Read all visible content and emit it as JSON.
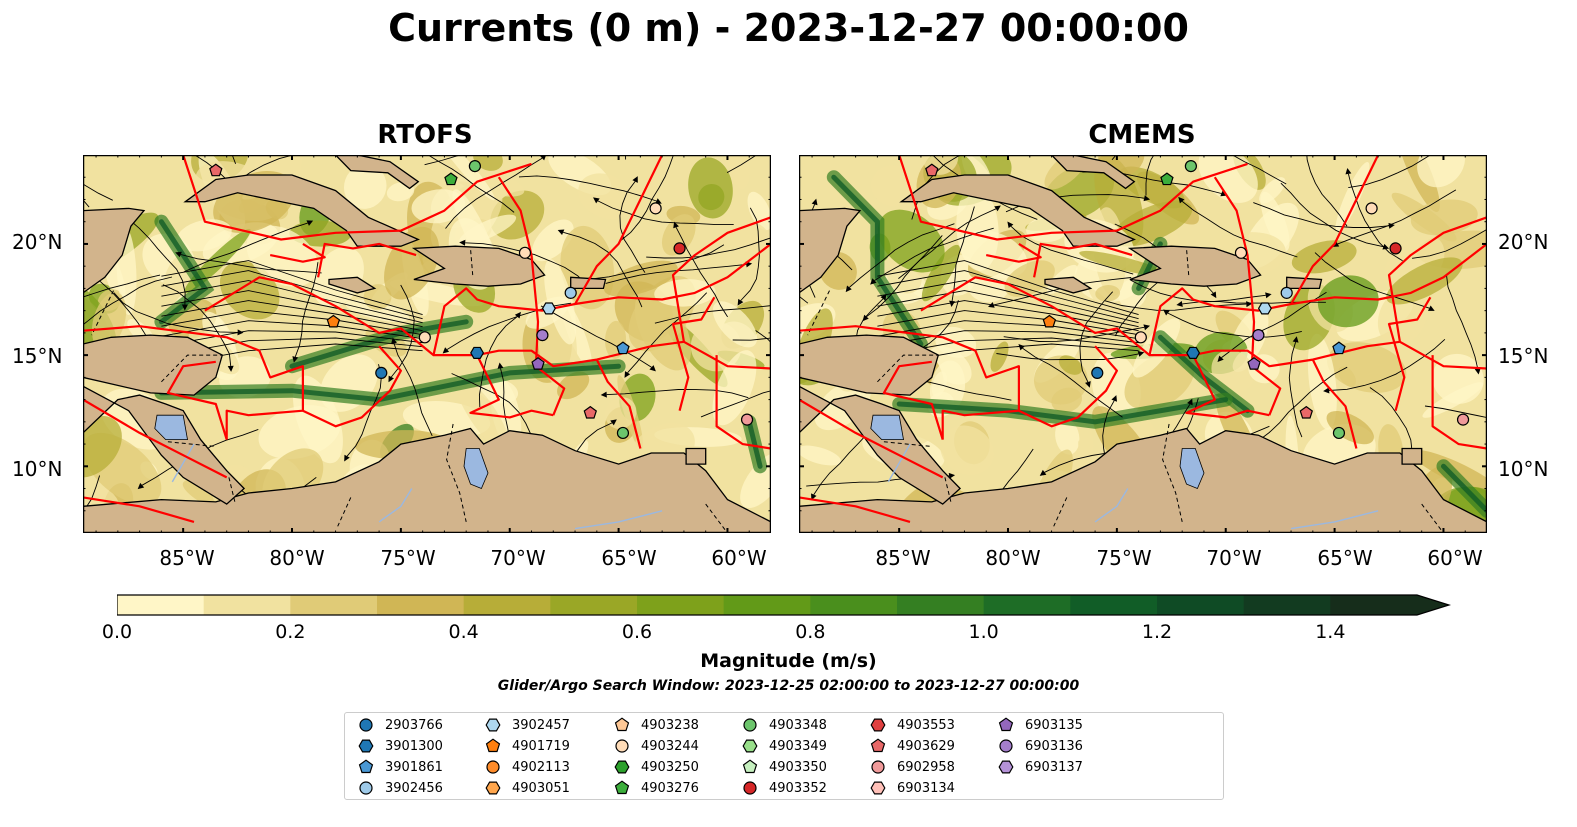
{
  "title": "Currents (0 m) - 2023-12-27 00:00:00",
  "panels": [
    {
      "title": "RTOFS"
    },
    {
      "title": "CMEMS"
    }
  ],
  "lat_labels": [
    "20°N",
    "15°N",
    "10°N"
  ],
  "lon_labels": [
    "85°W",
    "80°W",
    "75°W",
    "70°W",
    "65°W",
    "60°W"
  ],
  "map_extent": {
    "lon_min": -89.6,
    "lon_max": -58.0,
    "lat_min": 7.0,
    "lat_max": 24.0
  },
  "colorbar": {
    "label": "Magnitude (m/s)",
    "ticks": [
      "0.0",
      "0.2",
      "0.4",
      "0.6",
      "0.8",
      "1.0",
      "1.2",
      "1.4"
    ],
    "range": [
      0.0,
      1.5
    ],
    "extend": "max",
    "colors": [
      "#fff6c7",
      "#f1e2a0",
      "#e0cb77",
      "#d0b655",
      "#b7ad38",
      "#9aa726",
      "#7ea11b",
      "#629a18",
      "#4a8f1d",
      "#347f22",
      "#1e6d26",
      "#115d27",
      "#0f4b25",
      "#123b20",
      "#162d1b"
    ]
  },
  "search_window": "Glider/Argo Search Window: 2023-12-25 02:00:00 to 2023-12-27 00:00:00",
  "colors": {
    "land": "#d2b48c",
    "eez": "#ff0000",
    "lake": "#9bb8e0"
  },
  "legend": [
    {
      "id": "2903766",
      "marker": "circle",
      "color": "#1f77b4"
    },
    {
      "id": "3901300",
      "marker": "hexagon",
      "color": "#1f77b4"
    },
    {
      "id": "3901861",
      "marker": "pentagon",
      "color": "#4a98d4"
    },
    {
      "id": "3902456",
      "marker": "circle",
      "color": "#9ecae9"
    },
    {
      "id": "3902457",
      "marker": "hexagon",
      "color": "#aed8f0"
    },
    {
      "id": "4901719",
      "marker": "pentagon",
      "color": "#ff7f0e"
    },
    {
      "id": "4902113",
      "marker": "circle",
      "color": "#ff8c2a"
    },
    {
      "id": "4903051",
      "marker": "hexagon",
      "color": "#ffa64d"
    },
    {
      "id": "4903238",
      "marker": "pentagon",
      "color": "#ffc896"
    },
    {
      "id": "4903244",
      "marker": "circle",
      "color": "#ffdcb8"
    },
    {
      "id": "4903250",
      "marker": "hexagon",
      "color": "#2ca02c"
    },
    {
      "id": "4903276",
      "marker": "pentagon",
      "color": "#3cae3c"
    },
    {
      "id": "4903348",
      "marker": "circle",
      "color": "#6cc56c"
    },
    {
      "id": "4903349",
      "marker": "hexagon",
      "color": "#98df8a"
    },
    {
      "id": "4903350",
      "marker": "pentagon",
      "color": "#c6f0bf"
    },
    {
      "id": "4903352",
      "marker": "circle",
      "color": "#d62728"
    },
    {
      "id": "4903553",
      "marker": "hexagon",
      "color": "#e04040"
    },
    {
      "id": "4903629",
      "marker": "pentagon",
      "color": "#e86868"
    },
    {
      "id": "6902958",
      "marker": "circle",
      "color": "#f09a9a"
    },
    {
      "id": "6903134",
      "marker": "hexagon",
      "color": "#ffc0b8"
    },
    {
      "id": "6903135",
      "marker": "pentagon",
      "color": "#9467bd"
    },
    {
      "id": "6903136",
      "marker": "circle",
      "color": "#a47ecb"
    },
    {
      "id": "6903137",
      "marker": "hexagon",
      "color": "#b592d8"
    }
  ],
  "floats": [
    {
      "lon": -75.9,
      "lat": 14.2,
      "marker": "circle",
      "color": "#1f77b4"
    },
    {
      "lon": -71.5,
      "lat": 15.1,
      "marker": "hexagon",
      "color": "#1f77b4"
    },
    {
      "lon": -64.8,
      "lat": 15.3,
      "marker": "pentagon",
      "color": "#4a98d4"
    },
    {
      "lon": -67.2,
      "lat": 17.8,
      "marker": "circle",
      "color": "#9ecae9"
    },
    {
      "lon": -68.2,
      "lat": 17.1,
      "marker": "hexagon",
      "color": "#aed8f0"
    },
    {
      "lon": -78.1,
      "lat": 16.5,
      "marker": "pentagon",
      "color": "#ff7f0e"
    },
    {
      "lon": -69.3,
      "lat": 19.6,
      "marker": "circle",
      "color": "#ffdcb8"
    },
    {
      "lon": -63.3,
      "lat": 21.6,
      "marker": "circle",
      "color": "#ffdcb8"
    },
    {
      "lon": -73.9,
      "lat": 15.8,
      "marker": "circle",
      "color": "#ffdcb8"
    },
    {
      "lon": -72.7,
      "lat": 22.9,
      "marker": "pentagon",
      "color": "#3cae3c"
    },
    {
      "lon": -71.6,
      "lat": 23.5,
      "marker": "circle",
      "color": "#6cc56c"
    },
    {
      "lon": -64.8,
      "lat": 11.5,
      "marker": "circle",
      "color": "#6cc56c"
    },
    {
      "lon": -62.2,
      "lat": 19.8,
      "marker": "circle",
      "color": "#d62728"
    },
    {
      "lon": -83.5,
      "lat": 23.3,
      "marker": "pentagon",
      "color": "#e86868"
    },
    {
      "lon": -66.3,
      "lat": 12.4,
      "marker": "pentagon",
      "color": "#e86868"
    },
    {
      "lon": -59.1,
      "lat": 12.1,
      "marker": "circle",
      "color": "#f09a9a"
    },
    {
      "lon": -68.7,
      "lat": 14.6,
      "marker": "pentagon",
      "color": "#9467bd"
    },
    {
      "lon": -68.5,
      "lat": 15.9,
      "marker": "circle",
      "color": "#a47ecb"
    }
  ]
}
